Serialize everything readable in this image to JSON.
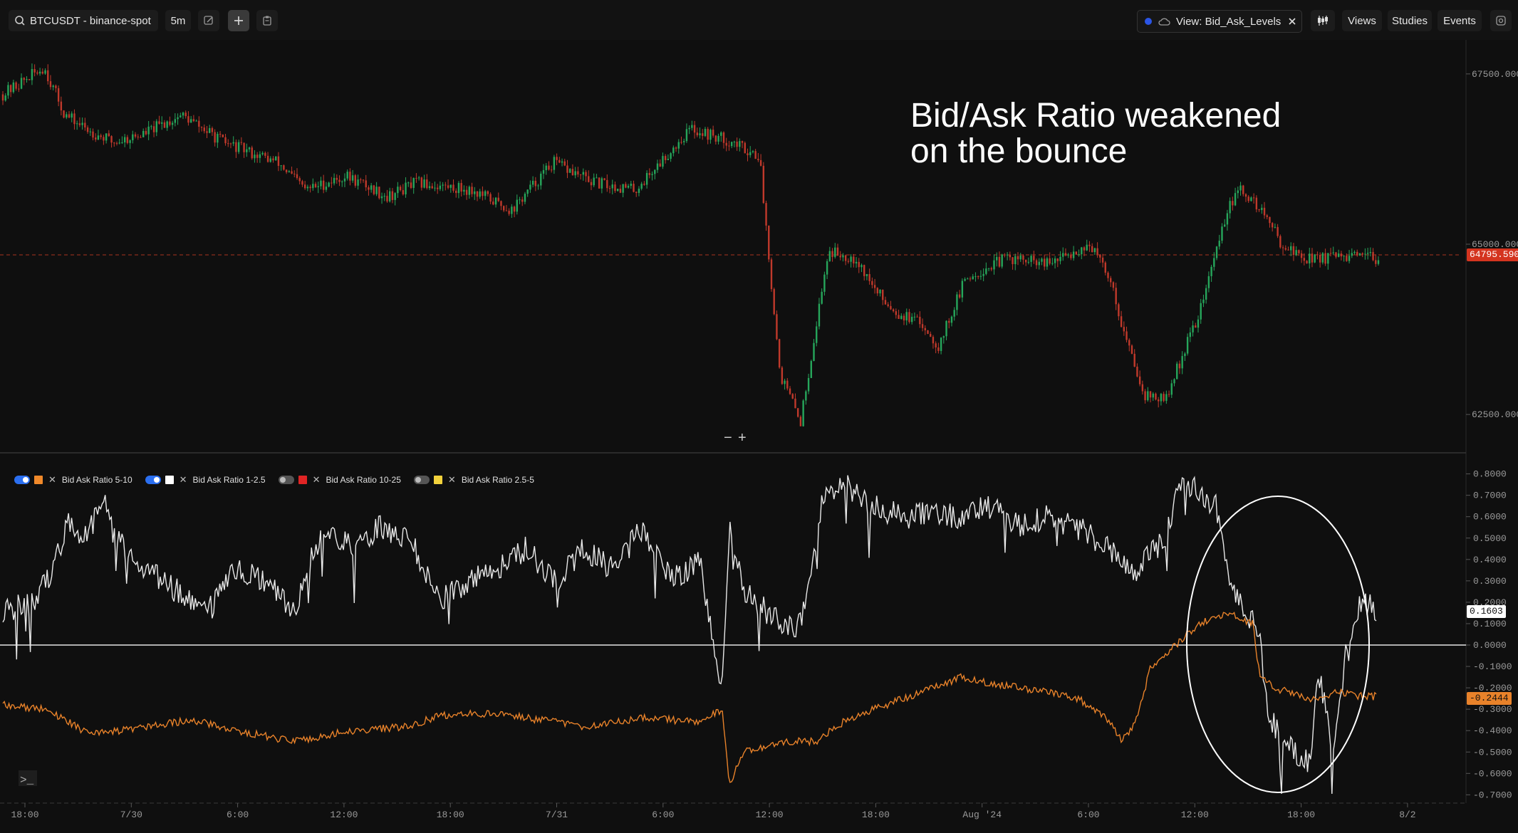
{
  "toolbar": {
    "symbol": "BTCUSDT - binance-spot",
    "interval": "5m",
    "view_label": "View: Bid_Ask_Levels",
    "views": "Views",
    "studies": "Studies",
    "events": "Events"
  },
  "annotation": {
    "line1": "Bid/Ask Ratio weakened",
    "line2": "on the bounce"
  },
  "price_axis": {
    "ticks": [
      "67500.0000",
      "65000.0000",
      "62500.0000"
    ],
    "last_price": "64795.5900"
  },
  "indicator_axis": {
    "ticks": [
      "0.8000",
      "0.7000",
      "0.6000",
      "0.5000",
      "0.4000",
      "0.3000",
      "0.2000",
      "0.1000",
      "0.0000",
      "-0.1000",
      "-0.2000",
      "-0.3000",
      "-0.4000",
      "-0.5000",
      "-0.6000",
      "-0.7000"
    ],
    "white_last": "0.1603",
    "orange_last": "-0.2444"
  },
  "time_axis": {
    "labels": [
      "18:00",
      "7/30",
      "6:00",
      "12:00",
      "18:00",
      "7/31",
      "6:00",
      "12:00",
      "18:00",
      "Aug '24",
      "6:00",
      "12:00",
      "18:00",
      "8/2"
    ]
  },
  "legend": [
    {
      "label": "Bid Ask Ratio 5-10",
      "color": "#f0892a",
      "on": true
    },
    {
      "label": "Bid Ask Ratio 1-2.5",
      "color": "#ffffff",
      "on": true
    },
    {
      "label": "Bid Ask Ratio 10-25",
      "color": "#e02424",
      "on": false
    },
    {
      "label": "Bid Ask Ratio 2.5-5",
      "color": "#f2d23c",
      "on": false
    }
  ],
  "pane_controls": {
    "minus": "−",
    "plus": "+"
  },
  "colors": {
    "up": "#26a65b",
    "down": "#c0392b",
    "white_series": "#e8e8e8",
    "orange_series": "#e8822a",
    "price_tag": "#d4341f"
  },
  "chart_data": {
    "type": "line",
    "price_series": {
      "name": "BTCUSDT",
      "points": [
        [
          0,
          67200
        ],
        [
          0.03,
          67600
        ],
        [
          0.045,
          66900
        ],
        [
          0.06,
          66700
        ],
        [
          0.08,
          66500
        ],
        [
          0.1,
          66600
        ],
        [
          0.13,
          66900
        ],
        [
          0.16,
          66500
        ],
        [
          0.2,
          66200
        ],
        [
          0.22,
          65800
        ],
        [
          0.25,
          66000
        ],
        [
          0.28,
          65700
        ],
        [
          0.3,
          65900
        ],
        [
          0.34,
          65800
        ],
        [
          0.37,
          65500
        ],
        [
          0.4,
          66200
        ],
        [
          0.43,
          65900
        ],
        [
          0.46,
          65800
        ],
        [
          0.5,
          66700
        ],
        [
          0.53,
          66500
        ],
        [
          0.55,
          66300
        ],
        [
          0.565,
          63100
        ],
        [
          0.58,
          62400
        ],
        [
          0.6,
          64900
        ],
        [
          0.62,
          64800
        ],
        [
          0.635,
          64300
        ],
        [
          0.65,
          64000
        ],
        [
          0.67,
          63800
        ],
        [
          0.68,
          63500
        ],
        [
          0.7,
          64500
        ],
        [
          0.73,
          64800
        ],
        [
          0.76,
          64700
        ],
        [
          0.79,
          65000
        ],
        [
          0.805,
          64500
        ],
        [
          0.815,
          63700
        ],
        [
          0.83,
          62800
        ],
        [
          0.845,
          62700
        ],
        [
          0.86,
          63500
        ],
        [
          0.87,
          64000
        ],
        [
          0.89,
          65500
        ],
        [
          0.9,
          65800
        ],
        [
          0.915,
          65500
        ],
        [
          0.93,
          65000
        ],
        [
          0.945,
          64800
        ]
      ],
      "ylim": [
        62000,
        68000
      ]
    },
    "series": [
      {
        "name": "Bid Ask Ratio 1-2.5",
        "last": 0.1603
      },
      {
        "name": "Bid Ask Ratio 5-10",
        "last": -0.2444
      }
    ],
    "indicator_ylim": [
      -0.72,
      0.82
    ]
  }
}
